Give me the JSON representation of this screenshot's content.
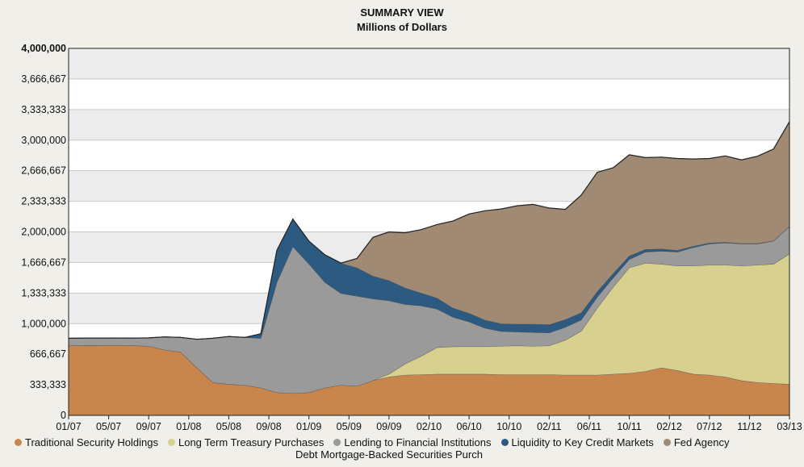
{
  "chart_data": {
    "type": "area",
    "stacked": true,
    "title": "SUMMARY VIEW",
    "subtitle": "Millions of Dollars",
    "ylim": [
      0,
      4000000
    ],
    "y_ticks": [
      "0",
      "333,333",
      "666,667",
      "1,000,000",
      "1,333,333",
      "1,666,667",
      "2,000,000",
      "2,333,333",
      "2,666,667",
      "3,000,000",
      "3,333,333",
      "3,666,667",
      "4,000,000"
    ],
    "x_ticks": [
      "01/07",
      "05/07",
      "09/07",
      "01/08",
      "05/08",
      "09/08",
      "01/09",
      "05/09",
      "09/09",
      "02/10",
      "06/10",
      "10/10",
      "02/11",
      "06/11",
      "10/11",
      "02/12",
      "07/12",
      "11/12",
      "03/13"
    ],
    "grid": true,
    "legend_position": "bottom",
    "x": [
      "01/07",
      "03/07",
      "05/07",
      "07/07",
      "09/07",
      "11/07",
      "01/08",
      "03/08",
      "04/08",
      "05/08",
      "06/08",
      "07/08",
      "08/08",
      "09/08",
      "10/08",
      "11/08",
      "12/08",
      "01/09",
      "02/09",
      "03/09",
      "04/09",
      "05/09",
      "06/09",
      "08/09",
      "09/09",
      "10/09",
      "12/09",
      "02/10",
      "04/10",
      "06/10",
      "08/10",
      "10/10",
      "12/10",
      "02/11",
      "04/11",
      "06/11",
      "08/11",
      "10/11",
      "12/11",
      "02/12",
      "04/12",
      "07/12",
      "09/12",
      "11/12",
      "01/13",
      "03/13"
    ],
    "series": [
      {
        "name": "Traditional Security Holdings",
        "color": "#c8854c",
        "values": [
          760000,
          762000,
          762000,
          765000,
          762000,
          755000,
          715000,
          690000,
          520000,
          360000,
          340000,
          330000,
          300000,
          250000,
          240000,
          250000,
          300000,
          330000,
          320000,
          380000,
          420000,
          440000,
          445000,
          450000,
          450000,
          450000,
          450000,
          445000,
          445000,
          445000,
          445000,
          440000,
          440000,
          440000,
          450000,
          460000,
          480000,
          520000,
          490000,
          450000,
          440000,
          420000,
          380000,
          360000,
          350000,
          340000
        ]
      },
      {
        "name": "Long Term Treasury Purchases",
        "color": "#d8d08e",
        "values": [
          0,
          0,
          0,
          0,
          0,
          0,
          0,
          0,
          0,
          0,
          0,
          0,
          0,
          0,
          0,
          0,
          0,
          0,
          0,
          0,
          30000,
          120000,
          200000,
          290000,
          300000,
          300000,
          300000,
          310000,
          315000,
          310000,
          315000,
          380000,
          480000,
          730000,
          950000,
          1150000,
          1180000,
          1130000,
          1140000,
          1180000,
          1200000,
          1220000,
          1250000,
          1280000,
          1300000,
          1420000
        ]
      },
      {
        "name": "Lending to Financial Institutions",
        "color": "#9a9a9a",
        "values": [
          80000,
          80000,
          80000,
          78000,
          80000,
          90000,
          140000,
          160000,
          310000,
          480000,
          520000,
          520000,
          540000,
          1200000,
          1600000,
          1400000,
          1150000,
          1000000,
          980000,
          890000,
          800000,
          650000,
          550000,
          420000,
          320000,
          270000,
          200000,
          160000,
          150000,
          150000,
          140000,
          140000,
          120000,
          120000,
          100000,
          90000,
          120000,
          140000,
          150000,
          200000,
          230000,
          240000,
          240000,
          230000,
          250000,
          300000
        ]
      },
      {
        "name": "Liquidity to Key Credit Markets",
        "color": "#2c5a80",
        "values": [
          0,
          0,
          0,
          0,
          0,
          0,
          0,
          0,
          0,
          0,
          0,
          0,
          50000,
          350000,
          300000,
          250000,
          300000,
          330000,
          310000,
          250000,
          220000,
          180000,
          140000,
          120000,
          100000,
          95000,
          90000,
          85000,
          85000,
          90000,
          90000,
          85000,
          80000,
          60000,
          50000,
          40000,
          30000,
          25000,
          20000,
          15000,
          10000,
          8000,
          5000,
          5000,
          3000,
          2000
        ]
      },
      {
        "name": "Fed Agency Debt  Mortgage-Backed Securities Purch",
        "color": "#a08a73",
        "values": [
          0,
          0,
          0,
          0,
          0,
          0,
          0,
          0,
          0,
          0,
          0,
          0,
          0,
          0,
          0,
          0,
          0,
          0,
          100000,
          420000,
          530000,
          600000,
          690000,
          800000,
          950000,
          1080000,
          1190000,
          1250000,
          1290000,
          1305000,
          1270000,
          1200000,
          1280000,
          1300000,
          1150000,
          1100000,
          1000000,
          1000000,
          1000000,
          950000,
          920000,
          940000,
          910000,
          950000,
          1000000,
          1140000
        ]
      }
    ]
  }
}
